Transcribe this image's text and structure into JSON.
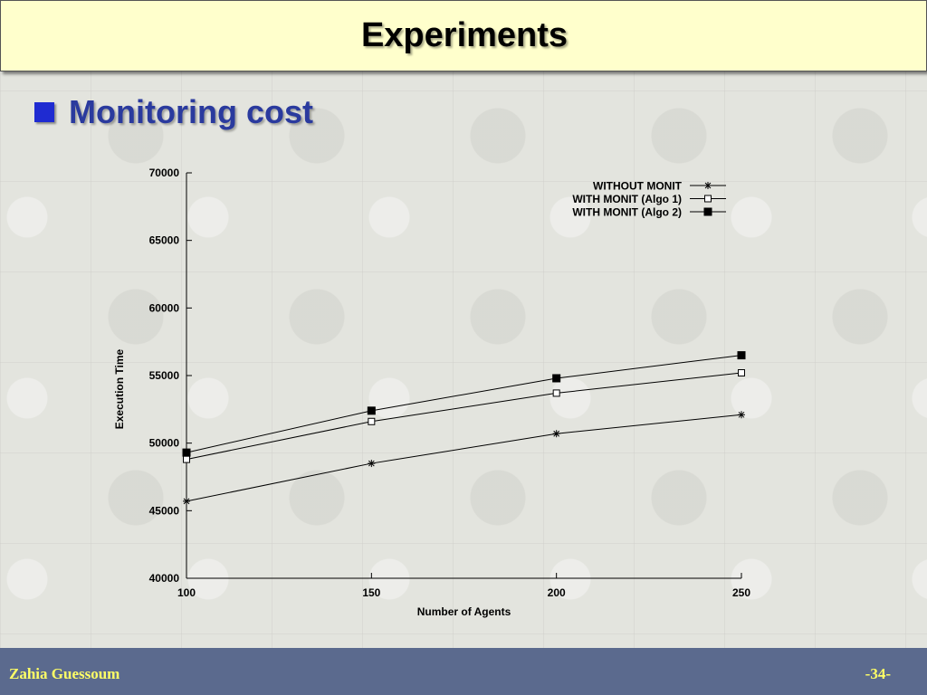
{
  "slide": {
    "title": "Experiments",
    "bullet": "Monitoring cost"
  },
  "footer": {
    "author": "Zahia Guessoum",
    "page": "-34-"
  },
  "colors": {
    "title_bg": "#ffffcc",
    "bullet_square": "#1f2bd1",
    "bullet_text": "#2a3a9e",
    "footer_bg": "#5b6a8e",
    "footer_text": "#ffff66"
  },
  "chart_data": {
    "type": "line",
    "x": [
      100,
      150,
      200,
      250
    ],
    "xticks": [
      "100",
      "150",
      "200",
      "250"
    ],
    "yticks": [
      "40000",
      "45000",
      "50000",
      "55000",
      "60000",
      "65000",
      "70000"
    ],
    "xlabel": "Number of Agents",
    "ylabel": "Execution Time",
    "xlim": [
      100,
      250
    ],
    "ylim": [
      40000,
      70000
    ],
    "grid": false,
    "legend_position": "top-right",
    "series": [
      {
        "name": "WITHOUT MONIT",
        "marker": "star",
        "values": [
          45700,
          48500,
          50700,
          52100
        ]
      },
      {
        "name": "WITH MONIT (Algo 1)",
        "marker": "open-square",
        "values": [
          48800,
          51600,
          53700,
          55200
        ]
      },
      {
        "name": "WITH MONIT (Algo 2)",
        "marker": "filled-square",
        "values": [
          49300,
          52400,
          54800,
          56500
        ]
      }
    ]
  }
}
